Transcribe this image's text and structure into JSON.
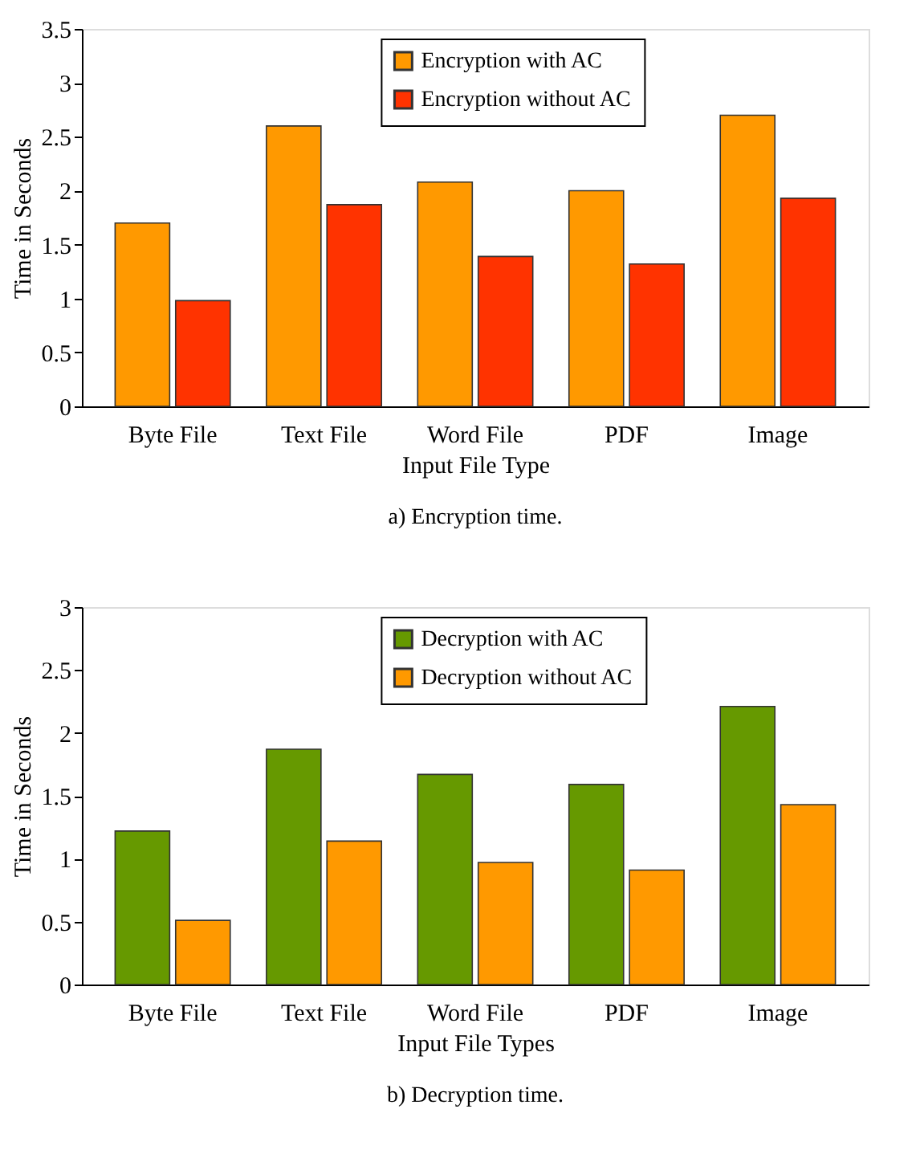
{
  "chart_data": [
    {
      "type": "bar",
      "categories": [
        "Byte File",
        "Text File",
        "Word File",
        "PDF",
        "Image"
      ],
      "xlabel": "Input File Type",
      "ylabel": "Time in Seconds",
      "ylim": [
        0,
        3.5
      ],
      "yticks": [
        0,
        0.5,
        1,
        1.5,
        2,
        2.5,
        3,
        3.5
      ],
      "legend": "top",
      "annotations": [
        "a) Encryption time."
      ],
      "series": [
        {
          "name": "Encryption with AC",
          "color": "#ff9900",
          "values": [
            1.7,
            2.6,
            2.08,
            2.0,
            2.7
          ]
        },
        {
          "name": "Encryption without AC",
          "color": "#ff3300",
          "values": [
            0.98,
            1.87,
            1.39,
            1.32,
            1.93
          ]
        }
      ]
    },
    {
      "type": "bar",
      "categories": [
        "Byte File",
        "Text File",
        "Word File",
        "PDF",
        "Image"
      ],
      "xlabel": "Input File Types",
      "ylabel": "Time in Seconds",
      "ylim": [
        0,
        3
      ],
      "yticks": [
        0,
        0.5,
        1,
        1.5,
        2,
        2.5,
        3
      ],
      "legend": "top",
      "annotations": [
        "b) Decryption time."
      ],
      "series": [
        {
          "name": "Decryption with AC",
          "color": "#669900",
          "values": [
            1.22,
            1.87,
            1.67,
            1.59,
            2.21
          ]
        },
        {
          "name": "Decryption without AC",
          "color": "#ff9900",
          "values": [
            0.51,
            1.14,
            0.97,
            0.91,
            1.43
          ]
        }
      ]
    }
  ]
}
